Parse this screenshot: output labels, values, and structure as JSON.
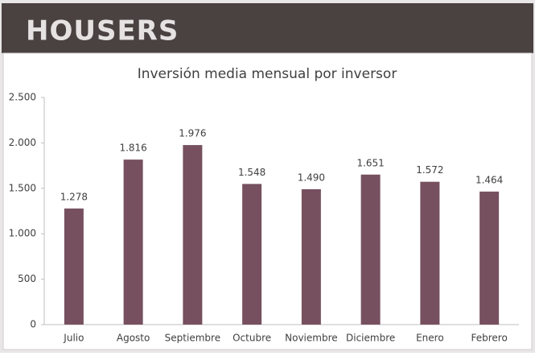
{
  "header": {
    "logo": "HOUSERS"
  },
  "chart_data": {
    "type": "bar",
    "title": "Inversión media mensual por inversor",
    "categories": [
      "Julio",
      "Agosto",
      "Septiembre",
      "Octubre",
      "Noviembre",
      "Diciembre",
      "Enero",
      "Febrero"
    ],
    "values": [
      1278,
      1816,
      1976,
      1548,
      1490,
      1651,
      1572,
      1464
    ],
    "value_labels": [
      "1.278",
      "1.816",
      "1.976",
      "1.548",
      "1.490",
      "1.651",
      "1.572",
      "1.464"
    ],
    "color": "#76505f",
    "ylim": [
      0,
      2500
    ],
    "yticks": [
      0,
      500,
      {
        "value": 1000,
        "label": "1.000"
      },
      {
        "value": 1500,
        "label": "1.500"
      },
      {
        "value": 2000,
        "label": "2.000"
      },
      {
        "value": 2500,
        "label": "2.500"
      }
    ],
    "grid": false
  }
}
